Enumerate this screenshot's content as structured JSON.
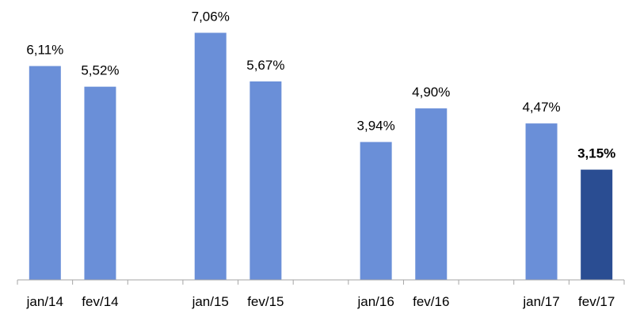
{
  "chart_data": {
    "type": "bar",
    "categories": [
      "jan/14",
      "fev/14",
      "",
      "jan/15",
      "fev/15",
      "",
      "jan/16",
      "fev/16",
      "",
      "jan/17",
      "fev/17"
    ],
    "values": [
      6.11,
      5.52,
      null,
      7.06,
      5.67,
      null,
      3.94,
      4.9,
      null,
      4.47,
      3.15
    ],
    "data_labels": [
      "6,11%",
      "5,52%",
      "",
      "7,06%",
      "5,67%",
      "",
      "3,94%",
      "4,90%",
      "",
      "4,47%",
      "3,15%"
    ],
    "highlight_index": 10,
    "ylim": [
      0,
      7.5
    ],
    "grid": false,
    "legend": "none",
    "colors": {
      "bar": "#6A8FD8",
      "highlight": "#2A4D92",
      "axis": "#A6A6A6"
    }
  }
}
